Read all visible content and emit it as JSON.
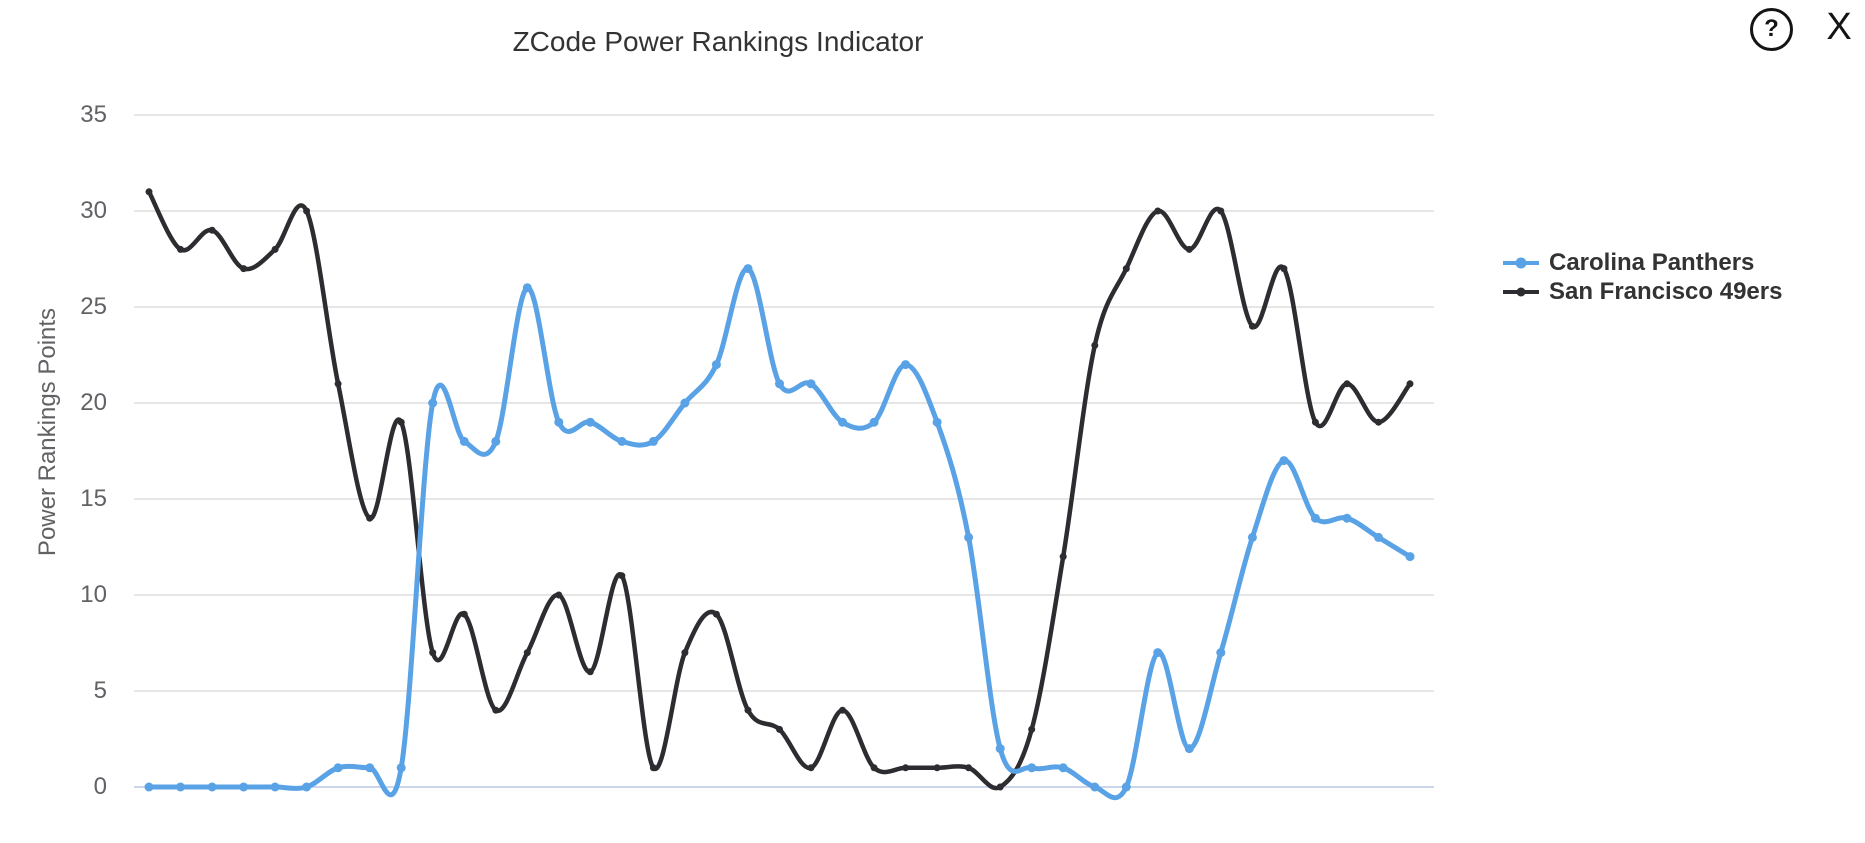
{
  "header": {
    "help_label": "?",
    "close_label": "X"
  },
  "chart_data": {
    "type": "line",
    "curve": "spline",
    "markers": true,
    "title": "ZCode Power Rankings Indicator",
    "xlabel": "",
    "ylabel": "Power Rankings Points",
    "ylim": [
      0,
      35
    ],
    "yticks": [
      0,
      5,
      10,
      15,
      20,
      25,
      30,
      35
    ],
    "x_axis_labels": "none",
    "grid": true,
    "legend_position": "right",
    "series": [
      {
        "name": "Carolina Panthers",
        "color": "#5aa2e6",
        "values": [
          0,
          0,
          0,
          0,
          0,
          0,
          1,
          1,
          1,
          20,
          18,
          18,
          26,
          19,
          19,
          18,
          18,
          20,
          22,
          27,
          21,
          21,
          19,
          19,
          22,
          19,
          13,
          2,
          1,
          1,
          0,
          0,
          7,
          2,
          7,
          13,
          17,
          14,
          14,
          13,
          12
        ]
      },
      {
        "name": "San Francisco 49ers",
        "color": "#2d2d31",
        "values": [
          31,
          28,
          29,
          27,
          28,
          30,
          21,
          14,
          19,
          7,
          9,
          4,
          7,
          10,
          6,
          11,
          1,
          7,
          9,
          4,
          3,
          1,
          4,
          1,
          1,
          1,
          1,
          0,
          3,
          12,
          23,
          27,
          30,
          28,
          30,
          24,
          27,
          19,
          21,
          19,
          21
        ]
      }
    ],
    "colors": {
      "grid_line": "#e6e6e6",
      "axis_line": "#ccd6eb",
      "title_text": "#333333",
      "axis_text": "#606266",
      "legend_text": "#333333",
      "icon": "#141414",
      "background": "#ffffff"
    }
  }
}
